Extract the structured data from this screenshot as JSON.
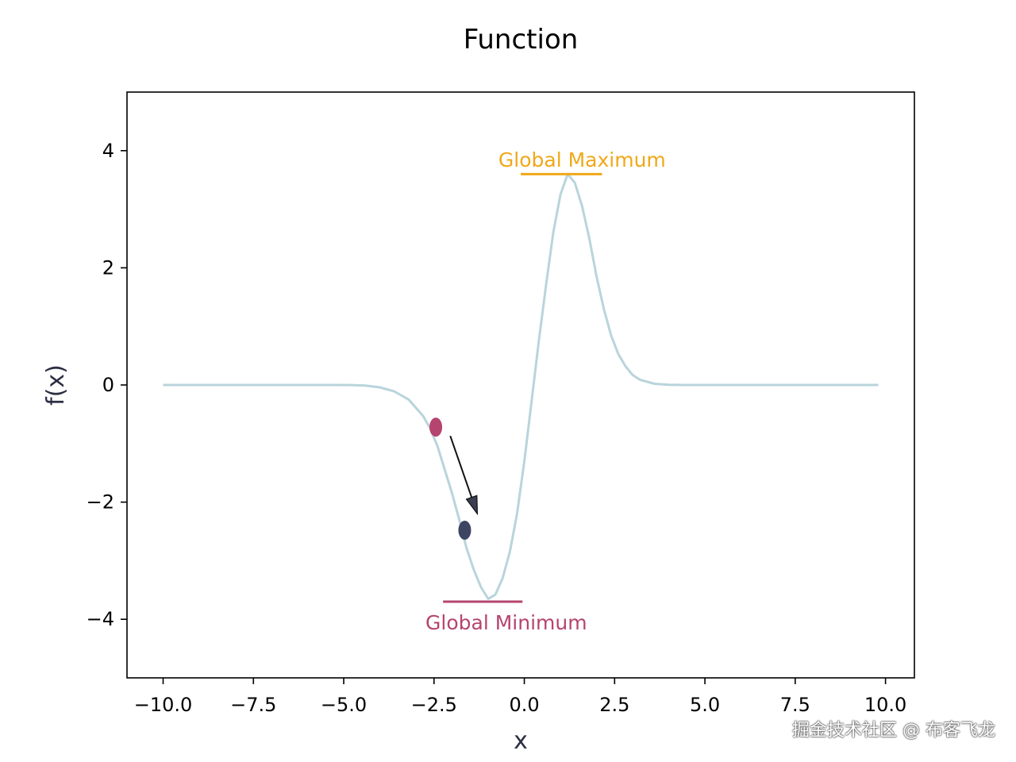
{
  "chart_data": {
    "type": "line",
    "title": "Function",
    "xlabel": "x",
    "ylabel": "f(x)",
    "xlim": [
      -11.0,
      10.8
    ],
    "ylim": [
      -5,
      5
    ],
    "xticks": [
      -10.0,
      -7.5,
      -5.0,
      -2.5,
      0.0,
      2.5,
      5.0,
      7.5,
      10.0
    ],
    "xtick_labels": [
      "−10.0",
      "−7.5",
      "−5.0",
      "−2.5",
      "0.0",
      "2.5",
      "5.0",
      "7.5",
      "10.0"
    ],
    "yticks": [
      -4,
      -2,
      0,
      2,
      4
    ],
    "ytick_labels": [
      "−4",
      "−2",
      "0",
      "2",
      "4"
    ],
    "grid": false,
    "series": [
      {
        "color": "#b9d4dc",
        "x": [
          -10.0,
          -9.6,
          -9.2,
          -8.8,
          -8.4,
          -8.0,
          -7.6,
          -7.2,
          -6.8,
          -6.4,
          -6.0,
          -5.6,
          -5.2,
          -4.8,
          -4.4,
          -4.0,
          -3.6,
          -3.2,
          -2.8,
          -2.6,
          -2.4,
          -2.2,
          -2.0,
          -1.8,
          -1.6,
          -1.4,
          -1.2,
          -1.0,
          -0.8,
          -0.6,
          -0.4,
          -0.2,
          0.0,
          0.2,
          0.4,
          0.6,
          0.8,
          1.0,
          1.2,
          1.4,
          1.6,
          1.8,
          2.0,
          2.2,
          2.4,
          2.6,
          2.8,
          3.0,
          3.2,
          3.6,
          4.0,
          4.4,
          4.8,
          5.2,
          5.6,
          6.0,
          6.8,
          7.6,
          8.4,
          9.2,
          9.8
        ],
        "y": [
          0,
          0,
          0,
          0,
          0,
          0,
          0,
          0,
          0,
          0,
          0,
          0,
          0,
          -0.002,
          -0.01,
          -0.04,
          -0.11,
          -0.25,
          -0.53,
          -0.75,
          -1.05,
          -1.45,
          -1.85,
          -2.3,
          -2.78,
          -3.15,
          -3.45,
          -3.65,
          -3.58,
          -3.3,
          -2.85,
          -2.2,
          -1.3,
          -0.28,
          0.75,
          1.7,
          2.6,
          3.25,
          3.6,
          3.45,
          3.05,
          2.5,
          1.85,
          1.3,
          0.85,
          0.53,
          0.32,
          0.17,
          0.09,
          0.02,
          0.004,
          0,
          0,
          0,
          0,
          0,
          0,
          0,
          0,
          0,
          0
        ]
      }
    ],
    "points": [
      {
        "x": -2.45,
        "y": -0.72,
        "color": "#b5446e"
      },
      {
        "x": -1.65,
        "y": -2.48,
        "color": "#3d4563"
      }
    ],
    "arrow": {
      "from": [
        -2.05,
        -0.87
      ],
      "to": [
        -1.3,
        -2.2
      ],
      "color": "#111111"
    },
    "annotations": [
      {
        "text": "Global Maximum",
        "x": 1.6,
        "y": 3.85,
        "color": "#f0a818",
        "line_x": [
          -0.1,
          2.15
        ],
        "line_y": 3.6
      },
      {
        "text": "Global Minimum",
        "x": -0.5,
        "y": -4.05,
        "color": "#b5446e",
        "line_x": [
          -2.25,
          -0.05
        ],
        "line_y": -3.7
      }
    ]
  },
  "watermark": "掘金技术社区 @ 布客飞龙"
}
